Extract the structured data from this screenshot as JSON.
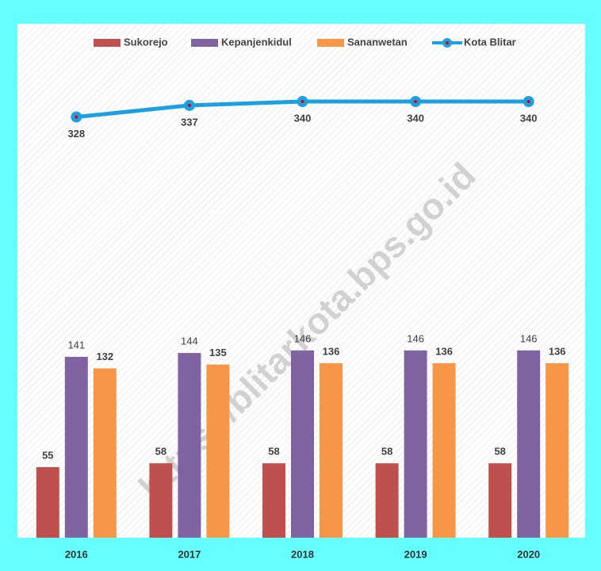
{
  "chart_data": {
    "type": "bar",
    "categories": [
      "2016",
      "2017",
      "2018",
      "2019",
      "2020"
    ],
    "series": [
      {
        "name": "Sukorejo",
        "color": "#c0504d",
        "values": [
          55,
          58,
          58,
          58,
          58
        ]
      },
      {
        "name": "Kepanjenkidul",
        "color": "#8064a2",
        "values": [
          141,
          144,
          146,
          146,
          146
        ]
      },
      {
        "name": "Sananwetan",
        "color": "#f79646",
        "values": [
          132,
          135,
          136,
          136,
          136
        ]
      },
      {
        "name": "Kota Blitar",
        "color": "#1ba1e2",
        "type": "line",
        "values": [
          328,
          337,
          340,
          340,
          340
        ]
      }
    ],
    "ylim": [
      0,
      400
    ],
    "watermark": "https://blitarkota.bps.go.id"
  }
}
